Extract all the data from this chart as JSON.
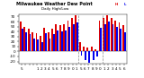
{
  "title": "Milwaukee Weather Dew Point",
  "subtitle": "Daily High/Low",
  "bar_width": 0.42,
  "background_color": "#ffffff",
  "high_color": "#dd0000",
  "low_color": "#0000ee",
  "ylim": [
    -25,
    75
  ],
  "ytick_vals": [
    -20,
    -10,
    0,
    10,
    20,
    30,
    40,
    50,
    60,
    70
  ],
  "vlines": [
    14.5,
    20.5
  ],
  "n_bars": 27,
  "high_values": [
    60,
    50,
    46,
    38,
    36,
    32,
    48,
    38,
    46,
    55,
    52,
    55,
    62,
    68,
    72,
    18,
    10,
    8,
    10,
    5,
    62,
    68,
    72,
    68,
    62,
    58,
    52
  ],
  "low_values": [
    45,
    38,
    34,
    26,
    24,
    18,
    36,
    26,
    34,
    42,
    40,
    42,
    50,
    55,
    58,
    -8,
    -18,
    -22,
    -18,
    -10,
    48,
    55,
    60,
    55,
    50,
    45,
    38
  ],
  "xlabel_vals": [
    "5",
    "",
    "",
    "",
    "1",
    "2",
    "3",
    "4",
    "5",
    "6",
    "7",
    "8",
    "9",
    "0",
    "1",
    "5",
    "6",
    "7",
    "8",
    "9",
    "0",
    "1",
    "2",
    "3",
    "4",
    "5",
    "6"
  ],
  "tick_fontsize": 3.0,
  "legend_fontsize": 3.0
}
